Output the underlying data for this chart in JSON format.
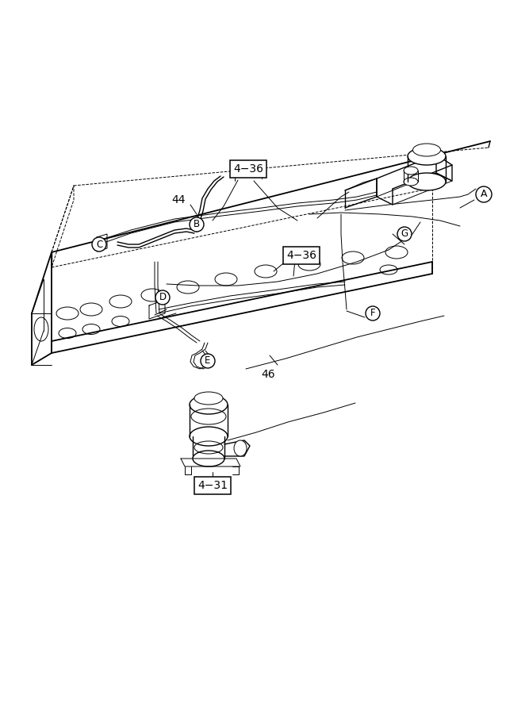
{
  "bg_color": "#ffffff",
  "line_color": "#000000",
  "lw_main": 1.3,
  "lw_thin": 0.7,
  "lw_med": 1.0,
  "box_labels": [
    "4-36",
    "4-36",
    "4-31"
  ],
  "circle_labels": [
    "A",
    "B",
    "C",
    "D",
    "E",
    "F",
    "G"
  ],
  "number_labels": [
    "44",
    "46"
  ],
  "label_4_36_top": "4−36",
  "label_4_36_bot": "4−36",
  "label_4_31": "4−31"
}
